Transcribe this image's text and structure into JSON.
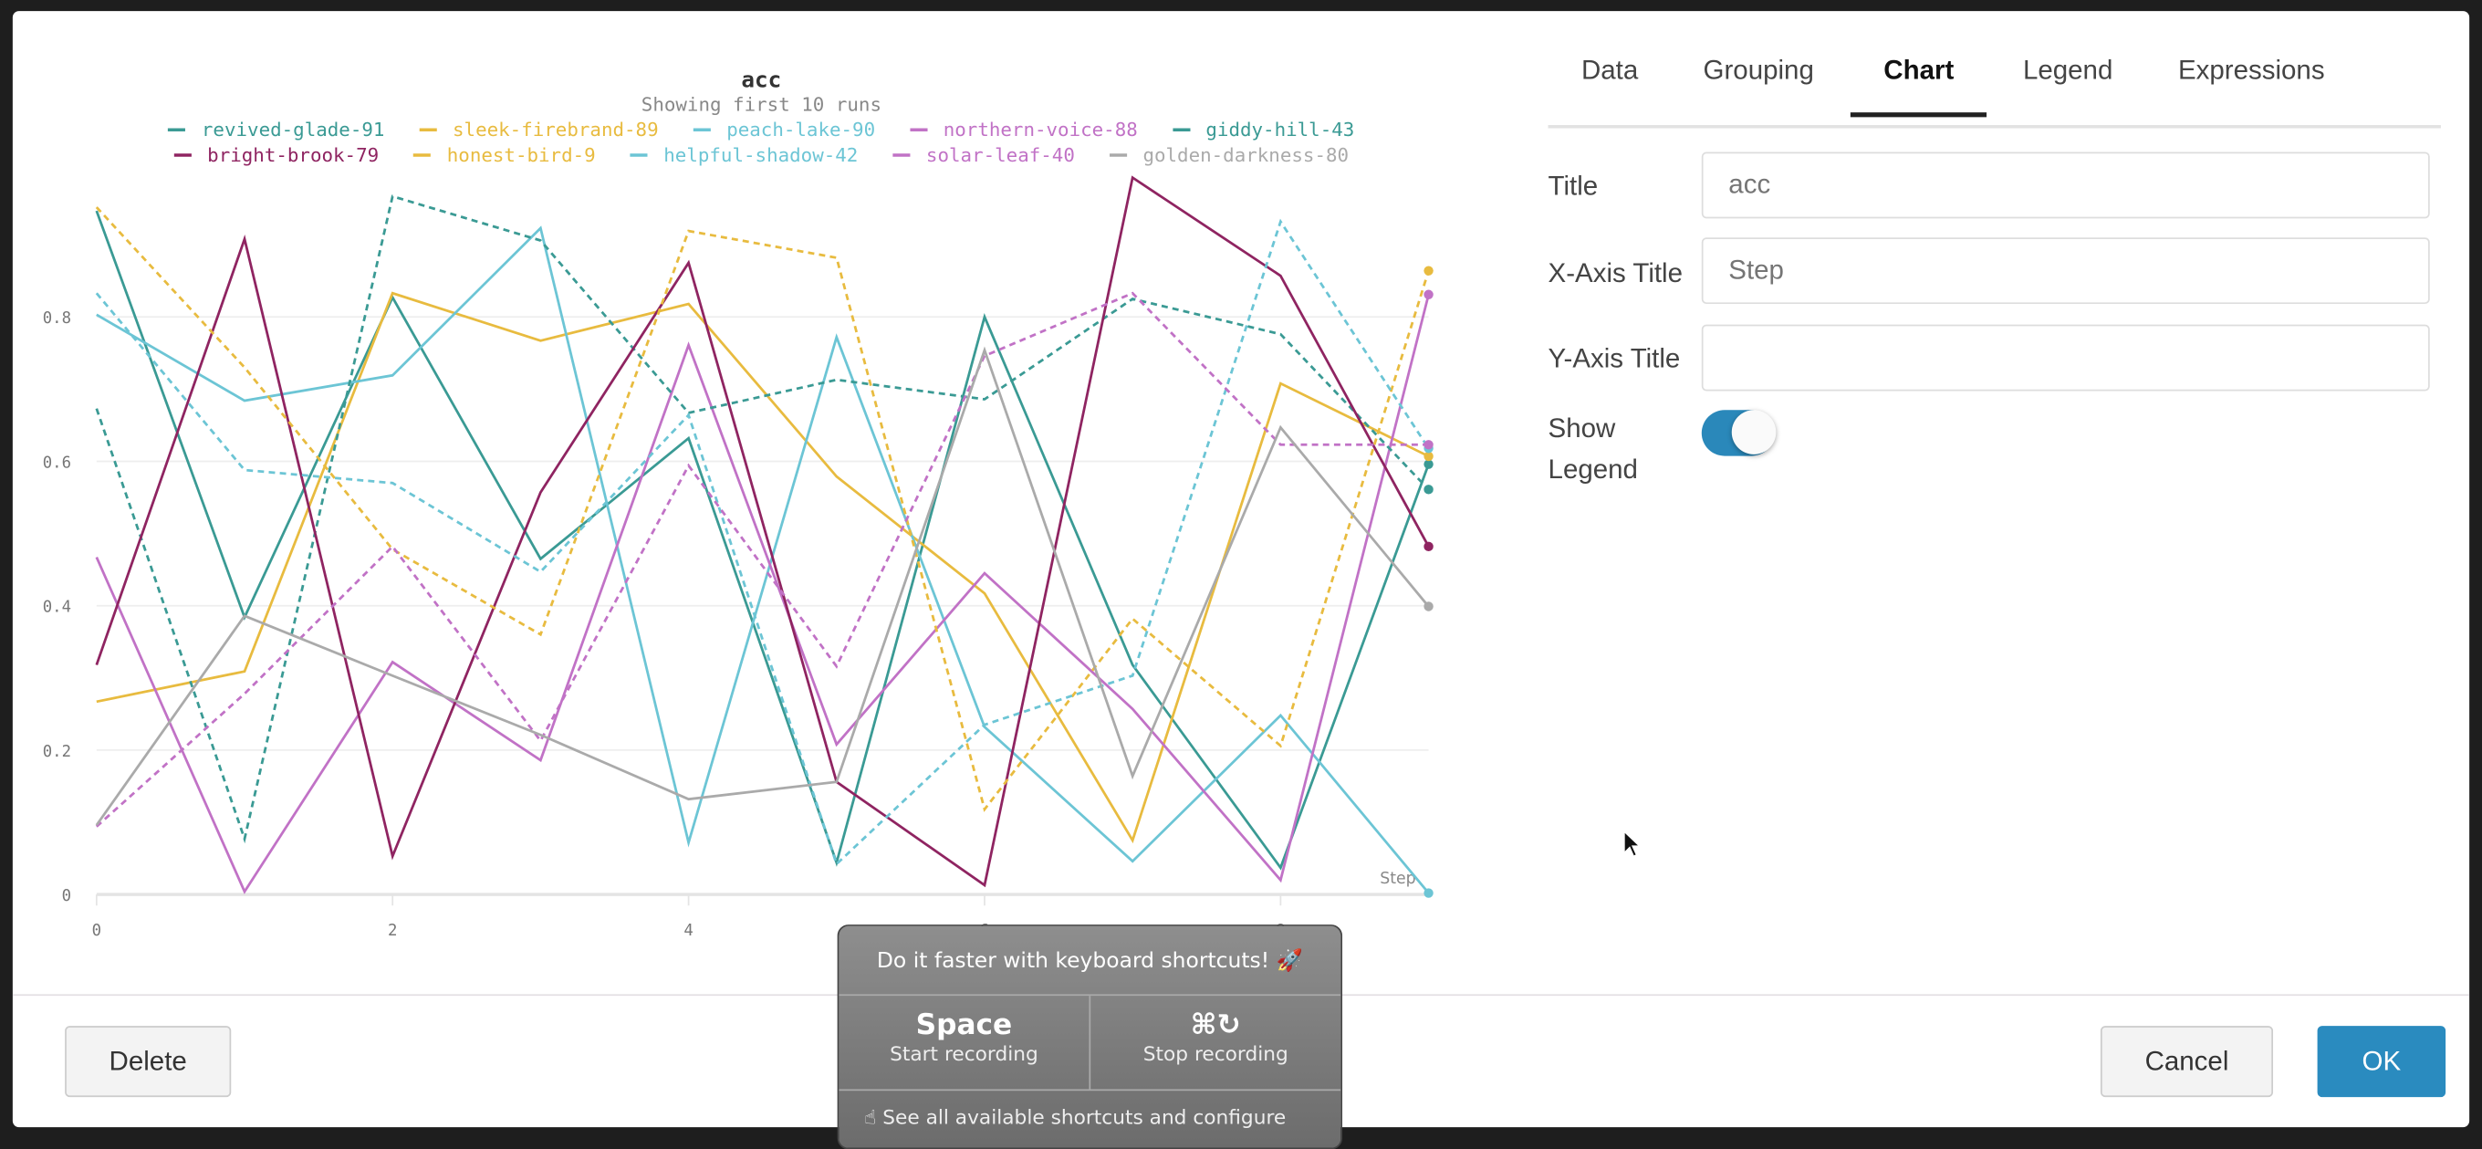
{
  "chart_data": {
    "type": "line",
    "title": "acc",
    "subtitle": "Showing first 10 runs",
    "xlabel": "Step",
    "ylabel": "",
    "x": [
      0,
      1,
      2,
      3,
      4,
      5,
      6,
      7,
      8,
      9
    ],
    "xlim": [
      0,
      9
    ],
    "ylim": [
      0,
      1
    ],
    "x_ticks": [
      "0",
      "2",
      "4",
      "6",
      "8"
    ],
    "y_ticks": [
      "0",
      "0.2",
      "0.4",
      "0.6",
      "0.8"
    ],
    "grid": true,
    "legend_position": "top",
    "series": [
      {
        "name": "revived-glade-91",
        "color": "#3a9a94",
        "dash": false,
        "values": [
          0.947,
          0.384,
          0.827,
          0.465,
          0.632,
          0.044,
          0.8,
          0.318,
          0.037,
          0.596
        ]
      },
      {
        "name": "sleek-firebrand-89",
        "color": "#e8bb3f",
        "dash": false,
        "values": [
          0.267,
          0.309,
          0.833,
          0.767,
          0.818,
          0.579,
          0.417,
          0.075,
          0.708,
          0.607
        ]
      },
      {
        "name": "peach-lake-90",
        "color": "#6cc5d5",
        "dash": false,
        "values": [
          0.803,
          0.684,
          0.719,
          0.923,
          0.072,
          0.772,
          0.232,
          0.046,
          0.248,
          0.002
        ]
      },
      {
        "name": "northern-voice-88",
        "color": "#c172c6",
        "dash": false,
        "values": [
          0.467,
          0.004,
          0.322,
          0.186,
          0.761,
          0.208,
          0.445,
          0.257,
          0.02,
          0.831
        ]
      },
      {
        "name": "giddy-hill-43",
        "color": "#3a9a94",
        "dash": true,
        "values": [
          0.673,
          0.077,
          0.967,
          0.906,
          0.667,
          0.713,
          0.686,
          0.825,
          0.776,
          0.561
        ]
      },
      {
        "name": "bright-brook-79",
        "color": "#8f2461",
        "dash": false,
        "values": [
          0.318,
          0.908,
          0.053,
          0.557,
          0.875,
          0.156,
          0.013,
          0.993,
          0.857,
          0.482
        ]
      },
      {
        "name": "honest-bird-9",
        "color": "#e8bb3f",
        "dash": true,
        "values": [
          0.952,
          0.73,
          0.478,
          0.36,
          0.919,
          0.882,
          0.118,
          0.382,
          0.206,
          0.864
        ]
      },
      {
        "name": "helpful-shadow-42",
        "color": "#6cc5d5",
        "dash": true,
        "values": [
          0.833,
          0.588,
          0.57,
          0.447,
          0.664,
          0.042,
          0.235,
          0.303,
          0.932,
          0.618
        ]
      },
      {
        "name": "solar-leaf-40",
        "color": "#c172c6",
        "dash": true,
        "values": [
          0.094,
          0.278,
          0.482,
          0.213,
          0.594,
          0.316,
          0.746,
          0.833,
          0.623,
          0.623
        ]
      },
      {
        "name": "golden-darkness-80",
        "color": "#aaaaaa",
        "dash": false,
        "values": [
          0.096,
          0.386,
          0.303,
          0.221,
          0.132,
          0.156,
          0.754,
          0.164,
          0.647,
          0.399
        ]
      }
    ]
  },
  "tabs": [
    {
      "label": "Data",
      "active": false
    },
    {
      "label": "Grouping",
      "active": false
    },
    {
      "label": "Chart",
      "active": true
    },
    {
      "label": "Legend",
      "active": false
    },
    {
      "label": "Expressions",
      "active": false
    }
  ],
  "form": {
    "title_label": "Title",
    "title_placeholder": "acc",
    "xaxis_label": "X-Axis Title",
    "xaxis_placeholder": "Step",
    "yaxis_label": "Y-Axis Title",
    "yaxis_placeholder": "",
    "legend_label_1": "Show",
    "legend_label_2": "Legend",
    "show_legend": true,
    "accent": "#2a88ba"
  },
  "footer": {
    "delete": "Delete",
    "cancel": "Cancel",
    "ok": "OK"
  },
  "popup": {
    "heading": "Do it faster with keyboard shortcuts! 🚀",
    "key1": "Space",
    "desc1": "Start recording",
    "key2": "⌘↻",
    "desc2": "Stop recording",
    "footer": "☝ See all available shortcuts and configure"
  }
}
